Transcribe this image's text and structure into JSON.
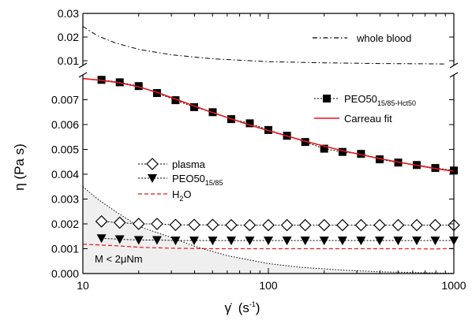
{
  "chart_data": {
    "type": "line",
    "xlabel": "γ̇ (s⁻¹)",
    "xlabel_main": "γ̇",
    "xlabel_unit": "(s",
    "xlabel_sup": "-1",
    "xlabel_close": ")",
    "ylabel": "η (Pa s)",
    "x_scale": "log",
    "xlim": [
      10,
      1000
    ],
    "x_ticks": [
      "10",
      "100",
      "1000"
    ],
    "upper_panel": {
      "ylim": [
        0.008,
        0.03
      ],
      "y_ticks": [
        "0.01",
        "0.02",
        "0.03"
      ]
    },
    "lower_panel": {
      "ylim": [
        0,
        0.008
      ],
      "y_ticks": [
        "0.000",
        "0.001",
        "0.002",
        "0.003",
        "0.004",
        "0.005",
        "0.006",
        "0.007"
      ]
    },
    "colors": {
      "axis": "#000000",
      "markers": "#000000",
      "carreau": "#e8141b",
      "h2o": "#e8141b",
      "shade": "#efefef"
    },
    "legend": {
      "whole_blood": "whole blood",
      "peo_hct_main": "PEO50",
      "peo_hct_sub": "15/85-Hct50",
      "carreau": "Carreau fit",
      "plasma": "plasma",
      "peo_main": "PEO50",
      "peo_sub": "15/85",
      "h2o_main": "H",
      "h2o_sub": "2",
      "h2o_end": "O"
    },
    "annotation": "M < 2μNm",
    "series": [
      {
        "name": "whole blood",
        "style": "dash-dot",
        "panel": "upper",
        "x": [
          10,
          12,
          15,
          20,
          30,
          50,
          100,
          200,
          400,
          700,
          900
        ],
        "y": [
          0.0245,
          0.0205,
          0.0175,
          0.0148,
          0.0125,
          0.0108,
          0.0096,
          0.0091,
          0.0088,
          0.0087,
          0.0086
        ]
      },
      {
        "name": "PEO50 15/85-Hct50",
        "marker": "filled-square",
        "x": [
          12.6,
          15.8,
          20,
          25.1,
          31.6,
          39.8,
          50.1,
          63.1,
          79.4,
          100,
          126,
          158,
          200,
          251,
          316,
          398,
          501,
          631,
          794,
          1000
        ],
        "y": [
          0.0078,
          0.0077,
          0.00755,
          0.00727,
          0.00698,
          0.0067,
          0.0065,
          0.00622,
          0.00605,
          0.00578,
          0.00555,
          0.0053,
          0.00503,
          0.0049,
          0.00482,
          0.0046,
          0.00447,
          0.00437,
          0.00425,
          0.00415
        ]
      },
      {
        "name": "Carreau fit",
        "style": "solid",
        "x": [
          10,
          12.6,
          15.8,
          20,
          25.1,
          31.6,
          39.8,
          50.1,
          63.1,
          79.4,
          100,
          126,
          158,
          200,
          251,
          316,
          398,
          501,
          631,
          794,
          1000
        ],
        "y": [
          0.00785,
          0.00778,
          0.00768,
          0.00752,
          0.0073,
          0.00703,
          0.00675,
          0.00648,
          0.00623,
          0.00598,
          0.00576,
          0.00554,
          0.00533,
          0.00513,
          0.00495,
          0.00479,
          0.00463,
          0.00449,
          0.00436,
          0.00423,
          0.00412
        ]
      },
      {
        "name": "plasma",
        "marker": "open-diamond",
        "x": [
          12.6,
          15.8,
          20,
          25.1,
          31.6,
          39.8,
          50.1,
          63.1,
          79.4,
          100,
          126,
          158,
          200,
          251,
          316,
          398,
          501,
          631,
          794,
          1000
        ],
        "y": [
          0.0021,
          0.00205,
          0.002,
          0.002,
          0.00196,
          0.00196,
          0.00196,
          0.00195,
          0.00195,
          0.00195,
          0.00195,
          0.00195,
          0.00195,
          0.00195,
          0.00195,
          0.00195,
          0.00195,
          0.00195,
          0.00195,
          0.00195
        ]
      },
      {
        "name": "PEO50 15/85",
        "marker": "filled-triangle-down",
        "x": [
          12.6,
          15.8,
          20,
          25.1,
          31.6,
          39.8,
          50.1,
          63.1,
          79.4,
          100,
          126,
          158,
          200,
          251,
          316,
          398,
          501,
          631,
          794,
          1000
        ],
        "y": [
          0.00142,
          0.00138,
          0.00135,
          0.00135,
          0.00133,
          0.00133,
          0.00133,
          0.00133,
          0.00133,
          0.00133,
          0.00133,
          0.00133,
          0.00133,
          0.00133,
          0.00133,
          0.00133,
          0.00133,
          0.00133,
          0.00133,
          0.00133
        ]
      },
      {
        "name": "H2O",
        "style": "dashed",
        "x": [
          10,
          15,
          20,
          30,
          50,
          100,
          200,
          500,
          800,
          1000
        ],
        "y": [
          0.00118,
          0.00112,
          0.00106,
          0.00102,
          0.001,
          0.001,
          0.001,
          0.001,
          0.00099,
          0.00101
        ]
      },
      {
        "name": "M < 2μNm",
        "style": "dotted-boundary",
        "x": [
          10,
          12,
          15,
          20,
          30,
          40,
          60,
          100,
          150,
          250,
          400,
          1000
        ],
        "y": [
          0.0035,
          0.003,
          0.0025,
          0.0019,
          0.00145,
          0.0011,
          0.00072,
          0.0004,
          0.00025,
          0.00014,
          7e-05,
          1e-05
        ]
      }
    ]
  }
}
